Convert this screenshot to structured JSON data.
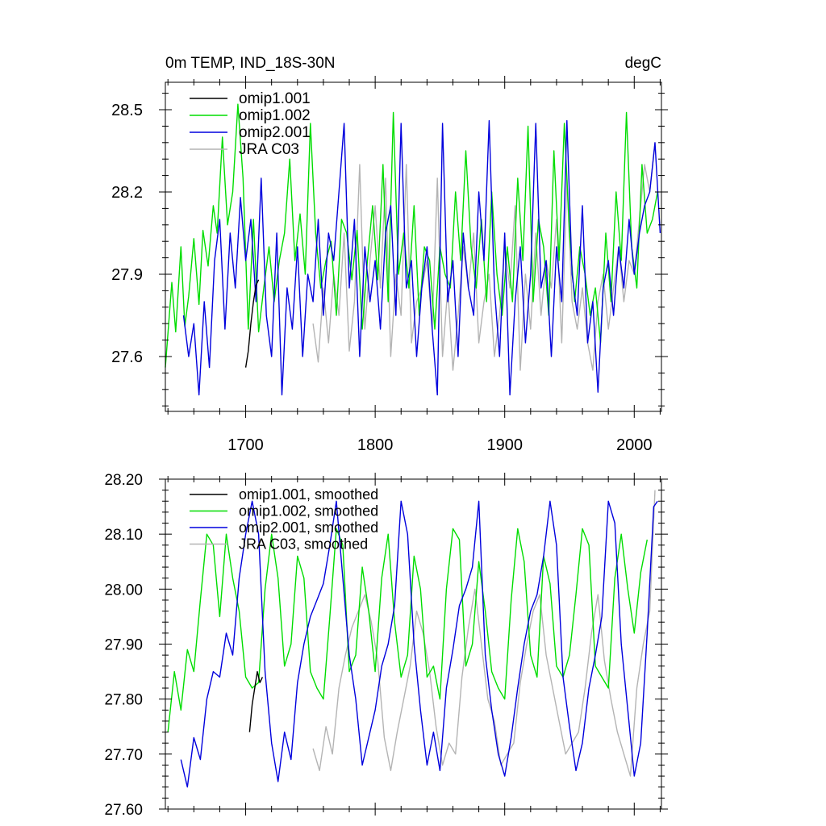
{
  "chart_data": [
    {
      "type": "line",
      "title": "0m TEMP, IND_18S-30N",
      "units": "degC",
      "xlim": [
        1638,
        2021
      ],
      "ylim": [
        27.4,
        28.6
      ],
      "x_ticks": [
        1700,
        1800,
        1900,
        2000
      ],
      "x_tick_labels": [
        "1700",
        "1800",
        "1900",
        "2000"
      ],
      "y_ticks": [
        27.6,
        27.9,
        28.2,
        28.5
      ],
      "y_tick_labels": [
        "27.6",
        "27.9",
        "28.2",
        "28.5"
      ],
      "legend_position": "top-left",
      "series": [
        {
          "name": "omip1.001",
          "color": "#000000",
          "x": [
            1700,
            1702,
            1704,
            1706,
            1708,
            1710
          ],
          "values": [
            27.56,
            27.62,
            27.72,
            27.8,
            27.86,
            27.88
          ]
        },
        {
          "name": "omip1.002",
          "color": "#00dd00",
          "x": [
            1638,
            1643,
            1646,
            1650,
            1653,
            1656,
            1660,
            1664,
            1667,
            1671,
            1675,
            1678,
            1682,
            1686,
            1690,
            1694,
            1698,
            1702,
            1706,
            1710,
            1714,
            1718,
            1722,
            1726,
            1730,
            1734,
            1738,
            1742,
            1746,
            1750,
            1754,
            1758,
            1762,
            1766,
            1770,
            1774,
            1778,
            1782,
            1786,
            1790,
            1794,
            1798,
            1802,
            1806,
            1810,
            1814,
            1818,
            1822,
            1826,
            1830,
            1834,
            1838,
            1842,
            1846,
            1850,
            1854,
            1858,
            1862,
            1866,
            1870,
            1874,
            1878,
            1882,
            1886,
            1890,
            1894,
            1898,
            1902,
            1906,
            1910,
            1914,
            1918,
            1922,
            1926,
            1930,
            1934,
            1938,
            1942,
            1946,
            1950,
            1954,
            1958,
            1962,
            1966,
            1970,
            1974,
            1978,
            1982,
            1986,
            1990,
            1994,
            1998,
            2002,
            2006,
            2010,
            2014,
            2018
          ],
          "values": [
            27.56,
            27.87,
            27.69,
            28.0,
            27.71,
            27.82,
            28.03,
            27.79,
            28.06,
            27.93,
            28.15,
            28.05,
            28.4,
            28.08,
            28.2,
            28.52,
            28.25,
            27.7,
            28.1,
            27.69,
            27.85,
            28.0,
            27.8,
            27.95,
            28.05,
            28.32,
            27.95,
            28.12,
            27.9,
            28.45,
            28.05,
            27.85,
            27.95,
            28.02,
            27.75,
            28.1,
            28.05,
            27.88,
            28.06,
            27.7,
            27.95,
            28.15,
            27.88,
            28.3,
            27.8,
            28.49,
            27.9,
            28.05,
            27.85,
            28.15,
            27.75,
            28.0,
            27.95,
            27.7,
            28.0,
            27.9,
            27.85,
            28.2,
            27.95,
            28.35,
            28.0,
            27.85,
            28.1,
            27.8,
            28.2,
            27.9,
            27.75,
            28.0,
            27.8,
            28.25,
            27.95,
            28.44,
            27.8,
            28.1,
            28.0,
            27.75,
            28.35,
            27.95,
            28.45,
            28.05,
            27.8,
            28.0,
            27.9,
            27.75,
            27.85,
            27.65,
            28.05,
            27.8,
            28.2,
            27.95,
            28.49,
            28.0,
            27.85,
            28.3,
            28.05,
            28.1,
            28.2
          ]
        },
        {
          "name": "omip2.001",
          "color": "#0000dd",
          "x": [
            1652,
            1656,
            1660,
            1664,
            1668,
            1672,
            1676,
            1680,
            1684,
            1688,
            1692,
            1696,
            1700,
            1704,
            1708,
            1712,
            1716,
            1720,
            1724,
            1728,
            1732,
            1736,
            1740,
            1744,
            1748,
            1752,
            1756,
            1760,
            1764,
            1768,
            1772,
            1776,
            1780,
            1784,
            1788,
            1792,
            1796,
            1800,
            1804,
            1808,
            1812,
            1816,
            1820,
            1824,
            1828,
            1832,
            1836,
            1840,
            1844,
            1848,
            1852,
            1856,
            1860,
            1864,
            1868,
            1872,
            1876,
            1880,
            1884,
            1888,
            1892,
            1896,
            1900,
            1904,
            1908,
            1912,
            1916,
            1920,
            1924,
            1928,
            1932,
            1936,
            1940,
            1944,
            1948,
            1952,
            1956,
            1960,
            1964,
            1968,
            1972,
            1976,
            1980,
            1984,
            1988,
            1992,
            1996,
            2000,
            2004,
            2008,
            2012,
            2016,
            2020
          ],
          "values": [
            27.75,
            27.6,
            27.72,
            27.46,
            27.8,
            27.56,
            27.95,
            28.1,
            27.7,
            28.05,
            27.85,
            28.18,
            27.95,
            28.1,
            27.8,
            28.25,
            27.75,
            27.6,
            28.05,
            27.46,
            27.85,
            27.7,
            28.0,
            27.6,
            27.9,
            27.8,
            28.1,
            27.75,
            28.05,
            27.95,
            28.2,
            28.45,
            27.85,
            28.1,
            27.6,
            28.0,
            27.8,
            27.95,
            27.7,
            28.05,
            28.15,
            27.75,
            28.45,
            27.85,
            27.95,
            27.6,
            27.85,
            28.0,
            27.7,
            27.46,
            28.45,
            27.8,
            27.95,
            27.6,
            28.05,
            27.85,
            27.75,
            28.2,
            27.95,
            28.46,
            27.85,
            27.6,
            28.05,
            27.46,
            27.8,
            28.0,
            27.65,
            27.9,
            28.45,
            27.85,
            27.95,
            27.6,
            28.0,
            27.8,
            28.46,
            27.9,
            27.75,
            28.15,
            27.65,
            27.8,
            27.47,
            27.85,
            27.95,
            27.75,
            28.0,
            27.85,
            28.1,
            27.9,
            28.05,
            28.15,
            28.2,
            28.38,
            28.05
          ]
        },
        {
          "name": "JRA C03",
          "color": "#b4b4b4",
          "x": [
            1752,
            1756,
            1760,
            1764,
            1768,
            1772,
            1776,
            1780,
            1784,
            1788,
            1792,
            1796,
            1800,
            1804,
            1808,
            1812,
            1816,
            1820,
            1824,
            1828,
            1832,
            1836,
            1840,
            1844,
            1848,
            1852,
            1856,
            1860,
            1864,
            1868,
            1872,
            1876,
            1880,
            1884,
            1888,
            1892,
            1896,
            1900,
            1904,
            1908,
            1912,
            1916,
            1920,
            1924,
            1928,
            1932,
            1936,
            1940,
            1944,
            1948,
            1952,
            1956,
            1960,
            1964,
            1968,
            1972,
            1976,
            1980,
            1984,
            1988,
            1992,
            1996,
            2000,
            2004,
            2008,
            2012,
            2016
          ],
          "values": [
            27.72,
            27.58,
            27.85,
            27.65,
            27.9,
            27.75,
            28.05,
            27.62,
            27.8,
            28.3,
            27.7,
            27.95,
            28.15,
            27.85,
            28.25,
            27.6,
            27.9,
            27.75,
            28.3,
            27.65,
            27.8,
            27.85,
            27.95,
            27.7,
            28.25,
            27.6,
            27.85,
            27.55,
            27.75,
            28.0,
            27.85,
            28.05,
            27.65,
            27.8,
            27.9,
            27.6,
            27.75,
            28.0,
            27.85,
            28.15,
            27.55,
            27.9,
            27.7,
            28.05,
            27.75,
            27.95,
            27.85,
            28.1,
            27.65,
            28.25,
            27.8,
            27.7,
            27.85,
            27.65,
            27.55,
            27.8,
            27.9,
            27.7,
            27.85,
            28.0,
            27.8,
            27.95,
            27.9,
            28.1,
            28.3,
            28.2,
            28.38
          ]
        }
      ]
    },
    {
      "type": "line",
      "title": "",
      "units": "",
      "xlim": [
        1638,
        2021
      ],
      "ylim": [
        27.6,
        28.2
      ],
      "x_ticks": [
        1700,
        1800,
        1900,
        2000
      ],
      "x_tick_labels": [],
      "y_ticks": [
        27.6,
        27.7,
        27.8,
        27.9,
        28.0,
        28.1,
        28.2
      ],
      "y_tick_labels": [
        "27.60",
        "27.70",
        "27.80",
        "27.90",
        "28.00",
        "28.10",
        "28.20"
      ],
      "legend_position": "top-left",
      "series": [
        {
          "name": "omip1.001, smoothed",
          "color": "#000000",
          "x": [
            1703,
            1705,
            1707,
            1709,
            1711,
            1713
          ],
          "values": [
            27.74,
            27.79,
            27.82,
            27.85,
            27.83,
            27.84
          ]
        },
        {
          "name": "omip1.002, smoothed",
          "color": "#00dd00",
          "x": [
            1640,
            1645,
            1650,
            1655,
            1660,
            1665,
            1670,
            1675,
            1680,
            1685,
            1690,
            1695,
            1700,
            1705,
            1710,
            1715,
            1720,
            1725,
            1730,
            1735,
            1740,
            1745,
            1750,
            1755,
            1760,
            1765,
            1770,
            1775,
            1780,
            1785,
            1790,
            1795,
            1800,
            1805,
            1810,
            1815,
            1820,
            1825,
            1830,
            1835,
            1840,
            1845,
            1850,
            1855,
            1860,
            1865,
            1870,
            1875,
            1880,
            1885,
            1890,
            1895,
            1900,
            1905,
            1910,
            1915,
            1920,
            1925,
            1930,
            1935,
            1940,
            1945,
            1950,
            1955,
            1960,
            1965,
            1970,
            1975,
            1980,
            1985,
            1990,
            1995,
            2000,
            2005,
            2010
          ],
          "values": [
            27.74,
            27.85,
            27.78,
            27.89,
            27.85,
            27.98,
            28.1,
            28.08,
            27.95,
            28.1,
            28.02,
            27.96,
            27.84,
            27.82,
            27.83,
            28.0,
            28.1,
            28.02,
            27.86,
            27.9,
            28.06,
            28.02,
            27.85,
            27.82,
            27.8,
            27.95,
            28.11,
            28.08,
            27.85,
            27.88,
            28.04,
            27.96,
            27.85,
            28.02,
            28.1,
            27.94,
            27.84,
            27.88,
            28.06,
            28.0,
            27.84,
            27.86,
            27.8,
            28.0,
            28.11,
            28.09,
            27.86,
            27.9,
            28.05,
            27.96,
            27.85,
            27.82,
            27.8,
            27.98,
            28.11,
            28.05,
            27.88,
            27.84,
            28.06,
            28.01,
            27.86,
            27.84,
            27.88,
            27.99,
            28.11,
            28.08,
            27.86,
            27.84,
            27.82,
            28.02,
            28.1,
            28.0,
            27.92,
            28.03,
            28.09
          ]
        },
        {
          "name": "omip2.001, smoothed",
          "color": "#0000dd",
          "x": [
            1650,
            1655,
            1660,
            1665,
            1670,
            1675,
            1680,
            1685,
            1690,
            1695,
            1700,
            1705,
            1710,
            1715,
            1720,
            1725,
            1730,
            1735,
            1740,
            1745,
            1750,
            1755,
            1760,
            1765,
            1770,
            1775,
            1780,
            1785,
            1790,
            1795,
            1800,
            1805,
            1810,
            1815,
            1820,
            1825,
            1830,
            1835,
            1840,
            1845,
            1850,
            1855,
            1860,
            1865,
            1870,
            1875,
            1880,
            1885,
            1890,
            1895,
            1900,
            1905,
            1910,
            1915,
            1920,
            1925,
            1930,
            1935,
            1940,
            1945,
            1950,
            1955,
            1960,
            1965,
            1970,
            1975,
            1980,
            1985,
            1990,
            1995,
            2000,
            2005,
            2010,
            2015,
            2018
          ],
          "values": [
            27.69,
            27.64,
            27.73,
            27.69,
            27.8,
            27.85,
            27.84,
            27.92,
            27.88,
            28.02,
            28.1,
            28.16,
            28.1,
            27.85,
            27.72,
            27.65,
            27.74,
            27.69,
            27.83,
            27.9,
            27.95,
            27.98,
            28.01,
            28.08,
            28.16,
            28.02,
            27.88,
            27.8,
            27.68,
            27.73,
            27.78,
            27.86,
            27.9,
            27.97,
            28.16,
            28.1,
            27.9,
            27.78,
            27.68,
            27.74,
            27.67,
            27.82,
            27.89,
            27.97,
            28.0,
            28.04,
            28.16,
            27.88,
            27.78,
            27.7,
            27.66,
            27.73,
            27.82,
            27.9,
            27.96,
            27.99,
            28.06,
            28.16,
            28.08,
            27.84,
            27.75,
            27.67,
            27.72,
            27.82,
            27.88,
            27.95,
            28.16,
            28.12,
            27.9,
            27.78,
            27.66,
            27.72,
            27.92,
            28.15,
            28.16
          ]
        },
        {
          "name": "JRA C03, smoothed",
          "color": "#b4b4b4",
          "x": [
            1752,
            1757,
            1762,
            1767,
            1772,
            1777,
            1782,
            1787,
            1792,
            1797,
            1802,
            1807,
            1812,
            1817,
            1822,
            1827,
            1832,
            1837,
            1842,
            1847,
            1852,
            1857,
            1862,
            1867,
            1872,
            1877,
            1882,
            1887,
            1892,
            1897,
            1902,
            1907,
            1912,
            1917,
            1922,
            1927,
            1932,
            1937,
            1942,
            1947,
            1952,
            1957,
            1962,
            1967,
            1972,
            1977,
            1982,
            1987,
            1992,
            1997,
            2002,
            2007,
            2012,
            2016
          ],
          "values": [
            27.71,
            27.67,
            27.75,
            27.7,
            27.82,
            27.88,
            27.93,
            27.96,
            27.99,
            27.94,
            27.87,
            27.73,
            27.67,
            27.74,
            27.8,
            27.86,
            27.96,
            27.92,
            27.85,
            27.75,
            27.68,
            27.72,
            27.7,
            27.84,
            27.93,
            28.0,
            27.9,
            27.8,
            27.76,
            27.68,
            27.7,
            27.72,
            27.83,
            27.9,
            27.96,
            27.99,
            27.88,
            27.82,
            27.76,
            27.7,
            27.72,
            27.74,
            27.82,
            27.92,
            27.99,
            27.87,
            27.8,
            27.74,
            27.7,
            27.66,
            27.82,
            27.9,
            27.96,
            28.18
          ]
        }
      ]
    }
  ]
}
